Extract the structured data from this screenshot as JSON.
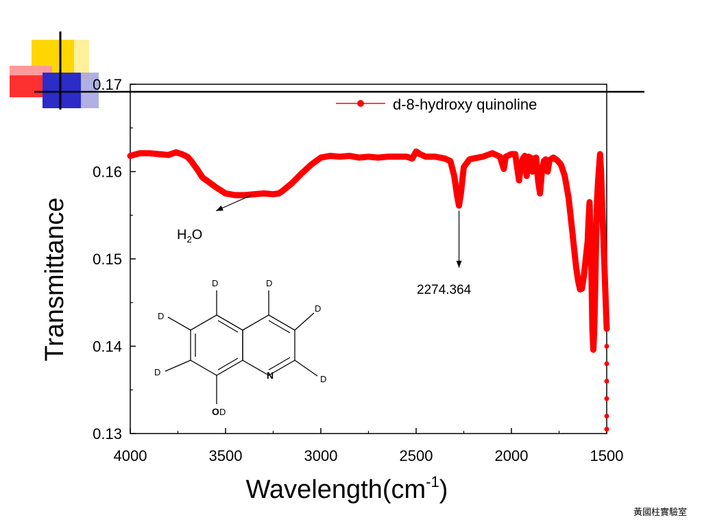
{
  "slide": {
    "footer": "黃國柱實驗室",
    "decoration": {
      "name": "corner-squares-decoration",
      "colors": [
        "#ffd700",
        "#ff3030",
        "#2c2cc8"
      ]
    }
  },
  "chart_data": {
    "type": "line",
    "title": "",
    "xlabel": "Wavelength(cm",
    "xlabel_sup": "-1",
    "xlabel_close": ")",
    "ylabel": "Transmittance",
    "xlim": [
      4000,
      1500
    ],
    "ylim": [
      0.13,
      0.17
    ],
    "x_ticks": [
      "4000",
      "3500",
      "3000",
      "2500",
      "2000",
      "1500"
    ],
    "y_ticks": [
      "0.13",
      "0.14",
      "0.15",
      "0.16",
      "0.17"
    ],
    "grid": false,
    "legend_position": "top-right",
    "series": [
      {
        "name": "d-8-hydroxy quinoline",
        "color": "#ff0000",
        "x": [
          4000,
          3950,
          3900,
          3850,
          3800,
          3760,
          3730,
          3700,
          3680,
          3650,
          3620,
          3600,
          3550,
          3500,
          3450,
          3400,
          3350,
          3300,
          3250,
          3220,
          3200,
          3150,
          3100,
          3050,
          3000,
          2950,
          2900,
          2850,
          2800,
          2750,
          2700,
          2650,
          2600,
          2550,
          2520,
          2500,
          2480,
          2450,
          2400,
          2350,
          2320,
          2300,
          2285,
          2275,
          2265,
          2250,
          2220,
          2200,
          2150,
          2100,
          2060,
          2040,
          2030,
          2020,
          2000,
          1980,
          1970,
          1960,
          1950,
          1940,
          1930,
          1920,
          1910,
          1900,
          1890,
          1880,
          1870,
          1860,
          1850,
          1840,
          1830,
          1820,
          1810,
          1800,
          1780,
          1760,
          1740,
          1720,
          1700,
          1690,
          1680,
          1670,
          1660,
          1650,
          1640,
          1630,
          1620,
          1610,
          1600,
          1595,
          1590,
          1585,
          1580,
          1575,
          1570,
          1565,
          1560,
          1555,
          1550,
          1545,
          1540,
          1535,
          1530,
          1525,
          1520,
          1515,
          1510,
          1505,
          1500
        ],
        "values": [
          0.1618,
          0.1621,
          0.1621,
          0.162,
          0.1619,
          0.1622,
          0.162,
          0.1617,
          0.1612,
          0.1603,
          0.1593,
          0.159,
          0.1582,
          0.1575,
          0.1573,
          0.1573,
          0.1574,
          0.1575,
          0.1574,
          0.1575,
          0.1578,
          0.1587,
          0.1598,
          0.1608,
          0.1616,
          0.1618,
          0.1617,
          0.1618,
          0.1616,
          0.1617,
          0.1616,
          0.1617,
          0.1617,
          0.1617,
          0.1615,
          0.1623,
          0.162,
          0.1617,
          0.1617,
          0.1615,
          0.1612,
          0.1595,
          0.1572,
          0.1561,
          0.1575,
          0.1605,
          0.1614,
          0.1615,
          0.1617,
          0.1621,
          0.1617,
          0.1603,
          0.1617,
          0.1618,
          0.162,
          0.162,
          0.1605,
          0.159,
          0.1607,
          0.1615,
          0.1618,
          0.1595,
          0.1617,
          0.1616,
          0.16,
          0.1615,
          0.1616,
          0.159,
          0.1575,
          0.16,
          0.1612,
          0.1614,
          0.16,
          0.1613,
          0.1616,
          0.1613,
          0.1608,
          0.1595,
          0.157,
          0.155,
          0.153,
          0.151,
          0.149,
          0.1475,
          0.1465,
          0.1466,
          0.148,
          0.15,
          0.152,
          0.1545,
          0.1565,
          0.153,
          0.148,
          0.142,
          0.1396,
          0.142,
          0.147,
          0.153,
          0.157,
          0.159,
          0.1605,
          0.162,
          0.16,
          0.157,
          0.154,
          0.151,
          0.148,
          0.145,
          0.142
        ]
      }
    ],
    "tail_drop_values": [
      0.14,
      0.138,
      0.136,
      0.134,
      0.132,
      0.1305
    ],
    "annotations": [
      {
        "text_main": "H",
        "text_sub": "2",
        "text_tail": "O",
        "arrow_from_x": 3365,
        "arrow_from_y": 0.1573,
        "arrow_to_x": 3550,
        "arrow_to_y": 0.1555
      },
      {
        "text": "2274.364",
        "arrow_from_x": 2275,
        "arrow_from_y": 0.1555,
        "arrow_to_x": 2275,
        "arrow_to_y": 0.149
      }
    ],
    "structure": {
      "name": "d-8-hydroxyquinoline-structure",
      "atom_labels": {
        "nitrogen": "N",
        "oxygen": "O",
        "deuterium": "D"
      }
    }
  }
}
